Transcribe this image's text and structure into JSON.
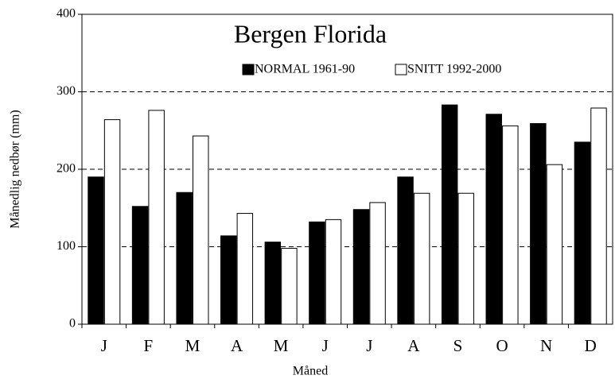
{
  "chart_data": {
    "type": "bar",
    "title": "Bergen Florida",
    "x_label": "Måned",
    "y_label": "Månedlig nedbør (mm)",
    "categories": [
      "J",
      "F",
      "M",
      "A",
      "M",
      "J",
      "J",
      "A",
      "S",
      "O",
      "N",
      "D"
    ],
    "series": [
      {
        "name": "NORMAL 1961-90",
        "color": "#000000",
        "values": [
          190,
          152,
          170,
          114,
          106,
          132,
          148,
          190,
          283,
          271,
          259,
          235
        ]
      },
      {
        "name": "SNITT 1992-2000",
        "color": "#ffffff",
        "values": [
          264,
          276,
          243,
          143,
          98,
          135,
          157,
          169,
          169,
          256,
          206,
          279
        ]
      }
    ],
    "ylim": [
      0,
      400
    ],
    "yticks": [
      0,
      100,
      200,
      300,
      400
    ],
    "grid": true
  }
}
